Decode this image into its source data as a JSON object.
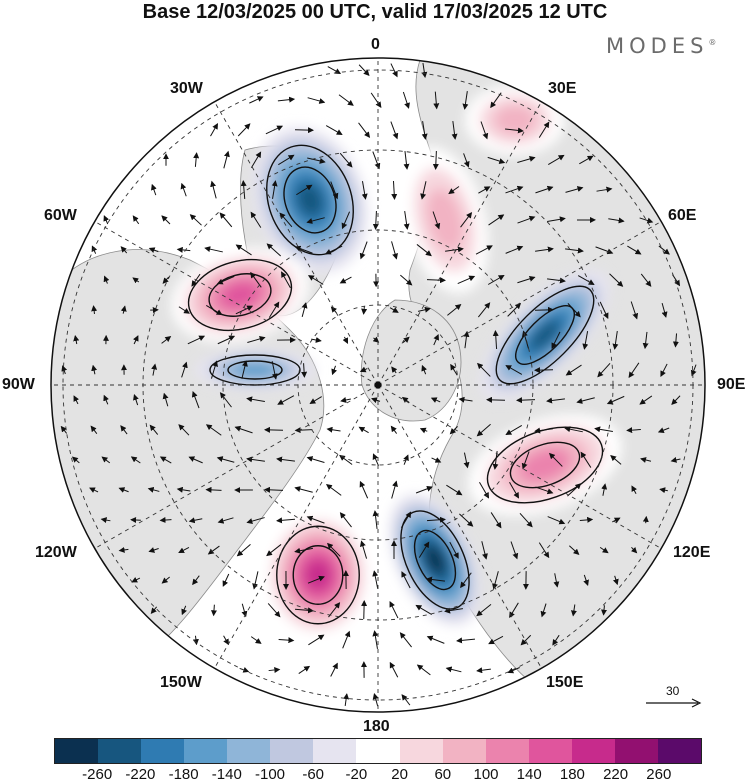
{
  "title": "Base 12/03/2025 00 UTC, valid 17/03/2025 12 UTC",
  "brand": "MODES",
  "brand_mark": "®",
  "longitude_labels": {
    "top": "0",
    "top_right": "30E",
    "right_upper": "60E",
    "right": "90E",
    "right_lower": "120E",
    "bottom_right": "150E",
    "bottom": "180",
    "bottom_left": "150W",
    "left_lower": "120W",
    "left": "90W",
    "left_upper": "60W",
    "top_left": "30W"
  },
  "wind_legend": {
    "value": "30",
    "icon": "wind-vector-arrow-icon"
  },
  "colorbar": {
    "colors": [
      "#0b3050",
      "#17567f",
      "#2f7bb2",
      "#5d9dcb",
      "#8fb5d8",
      "#c0c8e0",
      "#e6e4f0",
      "#ffffff",
      "#f7d7de",
      "#f2b3c3",
      "#eb83ad",
      "#e0559d",
      "#c72b8c",
      "#921070",
      "#5b0a6a"
    ],
    "labels": [
      "-260",
      "-220",
      "-180",
      "-140",
      "-100",
      "-60",
      "-20",
      "20",
      "60",
      "100",
      "140",
      "180",
      "220",
      "260"
    ]
  },
  "map_colors": {
    "land": "#e3e3e3",
    "coastline": "#8a8a8a",
    "grid": "#333333",
    "contour": "#111111",
    "arrow": "#111111"
  },
  "anomaly_centers": [
    {
      "name": "north-atlantic-negative",
      "value": -240
    },
    {
      "name": "north-america-positive",
      "value": 180
    },
    {
      "name": "canada-negative",
      "value": -160
    },
    {
      "name": "siberia-negative",
      "value": -240
    },
    {
      "name": "east-asia-positive",
      "value": 170
    },
    {
      "name": "north-pacific-negative",
      "value": -260
    },
    {
      "name": "gulf-of-alaska-positive",
      "value": 220
    },
    {
      "name": "arctic-positive",
      "value": 120
    },
    {
      "name": "europe-positive",
      "value": 100
    }
  ]
}
